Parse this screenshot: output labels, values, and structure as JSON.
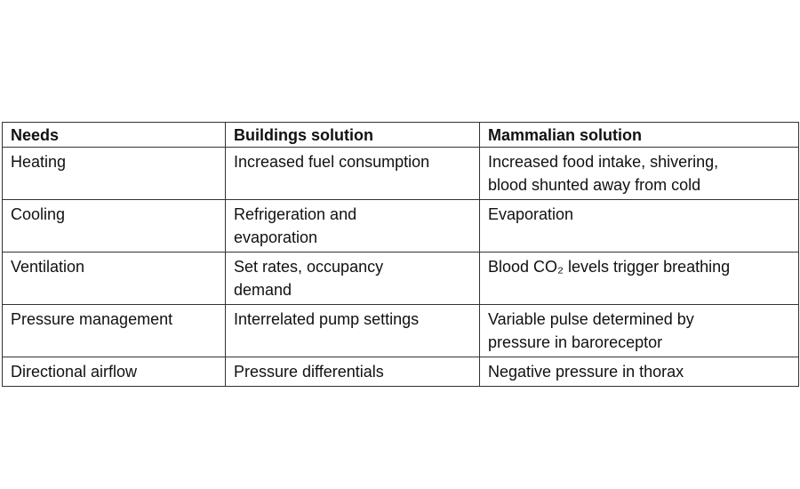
{
  "table": {
    "header": [
      "Needs",
      "Buildings solution",
      "Mammalian solution"
    ],
    "rows": [
      [
        [
          "Heating"
        ],
        [
          "Increased fuel consumption"
        ],
        [
          "Increased food intake, shivering,",
          "blood shunted away from cold"
        ]
      ],
      [
        [
          "Cooling"
        ],
        [
          "Refrigeration and",
          "evaporation"
        ],
        [
          "Evaporation"
        ]
      ],
      [
        [
          "Ventilation"
        ],
        [
          "Set rates, occupancy",
          "demand"
        ],
        [
          "Blood CO₂ levels trigger breathing"
        ]
      ],
      [
        [
          "Pressure management"
        ],
        [
          "Interrelated pump settings"
        ],
        [
          "Variable pulse determined by",
          "pressure in baroreceptor"
        ]
      ],
      [
        [
          "Directional airflow"
        ],
        [
          "Pressure differentials"
        ],
        [
          "Negative pressure in thorax"
        ]
      ]
    ]
  }
}
